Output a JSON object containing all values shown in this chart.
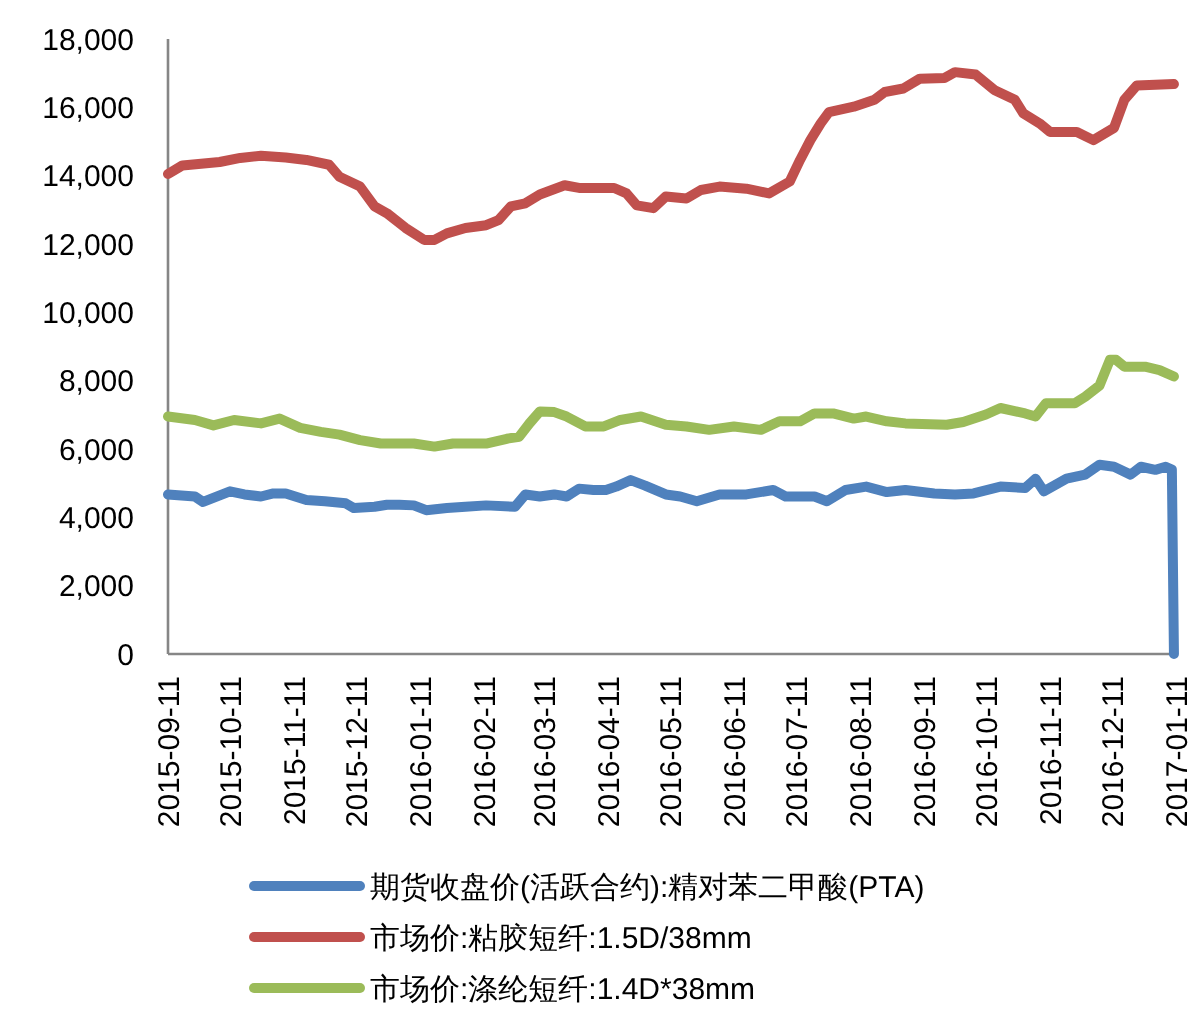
{
  "chart_data": {
    "type": "line",
    "xlim": [
      "2015-09-11",
      "2017-01-11"
    ],
    "xticks": [
      "2015-09-11",
      "2015-10-11",
      "2015-11-11",
      "2015-12-11",
      "2016-01-11",
      "2016-02-11",
      "2016-03-11",
      "2016-04-11",
      "2016-05-11",
      "2016-06-11",
      "2016-07-11",
      "2016-08-11",
      "2016-09-11",
      "2016-10-11",
      "2016-11-11",
      "2016-12-11",
      "2017-01-11"
    ],
    "ylim": [
      0,
      18000
    ],
    "yticks": [
      0,
      {
        "value": 2000,
        "label": "2,000"
      },
      {
        "value": 4000,
        "label": "4,000"
      },
      {
        "value": 6000,
        "label": "6,000"
      },
      {
        "value": 8000,
        "label": "8,000"
      },
      {
        "value": 10000,
        "label": "10,000"
      },
      {
        "value": 12000,
        "label": "12,000"
      },
      {
        "value": 14000,
        "label": "14,000"
      },
      {
        "value": 16000,
        "label": "16,000"
      },
      {
        "value": 18000,
        "label": "18,000"
      }
    ],
    "legend": "bottom",
    "line_style": "solid",
    "series": [
      {
        "name": "期货收盘价(活跃合约):精对苯二甲酸(PTA)",
        "color": "#4f81bd",
        "x": [
          "2015-09-11",
          "2015-09-24",
          "2015-09-28",
          "2015-10-11",
          "2015-10-18",
          "2015-10-26",
          "2015-11-01",
          "2015-11-07",
          "2015-11-17",
          "2015-11-26",
          "2015-12-06",
          "2015-12-10",
          "2015-12-20",
          "2015-12-26",
          "2016-01-01",
          "2016-01-08",
          "2016-01-14",
          "2016-01-24",
          "2016-02-02",
          "2016-02-12",
          "2016-02-26",
          "2016-03-02",
          "2016-03-09",
          "2016-03-16",
          "2016-03-22",
          "2016-03-28",
          "2016-04-04",
          "2016-04-10",
          "2016-04-15",
          "2016-04-22",
          "2016-04-29",
          "2016-05-09",
          "2016-05-16",
          "2016-05-24",
          "2016-06-04",
          "2016-06-17",
          "2016-06-30",
          "2016-07-06",
          "2016-07-20",
          "2016-07-26",
          "2016-08-04",
          "2016-08-14",
          "2016-08-24",
          "2016-09-02",
          "2016-09-16",
          "2016-09-26",
          "2016-10-05",
          "2016-10-18",
          "2016-10-30",
          "2016-11-04",
          "2016-11-08",
          "2016-11-19",
          "2016-11-28",
          "2016-12-05",
          "2016-12-12",
          "2016-12-20",
          "2016-12-25",
          "2017-01-01",
          "2017-01-06",
          "2017-01-09",
          "2017-01-10"
        ],
        "values": [
          4670,
          4610,
          4450,
          4760,
          4670,
          4610,
          4700,
          4700,
          4510,
          4470,
          4410,
          4270,
          4310,
          4370,
          4370,
          4350,
          4210,
          4270,
          4310,
          4350,
          4310,
          4670,
          4610,
          4670,
          4610,
          4840,
          4800,
          4800,
          4900,
          5090,
          4930,
          4670,
          4610,
          4470,
          4670,
          4670,
          4800,
          4610,
          4610,
          4470,
          4800,
          4900,
          4740,
          4800,
          4700,
          4670,
          4700,
          4900,
          4860,
          5130,
          4760,
          5130,
          5250,
          5540,
          5480,
          5250,
          5480,
          5390,
          5480,
          5400,
          0
        ]
      },
      {
        "name": "市场价:粘胶短纤:1.5D/38mm",
        "color": "#c0504d",
        "x": [
          "2015-09-11",
          "2015-09-18",
          "2015-10-06",
          "2015-10-16",
          "2015-10-26",
          "2015-11-07",
          "2015-11-17",
          "2015-11-28",
          "2015-12-03",
          "2015-12-13",
          "2015-12-20",
          "2015-12-26",
          "2016-01-04",
          "2016-01-13",
          "2016-01-18",
          "2016-01-24",
          "2016-02-02",
          "2016-02-12",
          "2016-02-18",
          "2016-02-24",
          "2016-03-02",
          "2016-03-09",
          "2016-03-21",
          "2016-03-28",
          "2016-04-14",
          "2016-04-20",
          "2016-04-25",
          "2016-05-03",
          "2016-05-09",
          "2016-05-19",
          "2016-05-26",
          "2016-06-04",
          "2016-06-17",
          "2016-06-28",
          "2016-07-08",
          "2016-07-13",
          "2016-07-18",
          "2016-07-23",
          "2016-07-27",
          "2016-08-08",
          "2016-08-18",
          "2016-08-23",
          "2016-09-01",
          "2016-09-09",
          "2016-09-21",
          "2016-09-26",
          "2016-10-06",
          "2016-10-15",
          "2016-10-25",
          "2016-10-29",
          "2016-11-06",
          "2016-11-11",
          "2016-11-24",
          "2016-12-02",
          "2016-12-12",
          "2016-12-17",
          "2016-12-23",
          "2017-01-10"
        ],
        "values": [
          14050,
          14300,
          14400,
          14520,
          14580,
          14530,
          14460,
          14320,
          13970,
          13680,
          13100,
          12900,
          12470,
          12120,
          12120,
          12310,
          12470,
          12550,
          12700,
          13100,
          13190,
          13450,
          13720,
          13640,
          13640,
          13480,
          13130,
          13050,
          13390,
          13330,
          13580,
          13680,
          13620,
          13480,
          13830,
          14460,
          15040,
          15530,
          15860,
          16020,
          16220,
          16450,
          16550,
          16840,
          16860,
          17030,
          16960,
          16510,
          16220,
          15830,
          15530,
          15280,
          15280,
          15040,
          15400,
          16220,
          16640,
          16680
        ]
      },
      {
        "name": "市场价:涤纶短纤:1.4D*38mm",
        "color": "#9bbb59",
        "x": [
          "2015-09-11",
          "2015-09-24",
          "2015-10-03",
          "2015-10-13",
          "2015-10-26",
          "2015-11-04",
          "2015-11-14",
          "2015-11-24",
          "2015-12-03",
          "2015-12-13",
          "2015-12-23",
          "2016-01-08",
          "2016-01-18",
          "2016-01-27",
          "2016-02-12",
          "2016-02-22",
          "2016-02-28",
          "2016-03-04",
          "2016-03-09",
          "2016-03-16",
          "2016-03-22",
          "2016-03-31",
          "2016-04-09",
          "2016-04-17",
          "2016-04-27",
          "2016-05-09",
          "2016-05-19",
          "2016-05-30",
          "2016-06-11",
          "2016-06-24",
          "2016-07-03",
          "2016-07-13",
          "2016-07-20",
          "2016-07-29",
          "2016-08-08",
          "2016-08-14",
          "2016-08-24",
          "2016-09-02",
          "2016-09-22",
          "2016-09-30",
          "2016-10-11",
          "2016-10-18",
          "2016-10-30",
          "2016-11-04",
          "2016-11-09",
          "2016-11-23",
          "2016-11-28",
          "2016-12-05",
          "2016-12-10",
          "2016-12-13",
          "2016-12-17",
          "2016-12-27",
          "2017-01-03",
          "2017-01-10"
        ],
        "values": [
          6950,
          6850,
          6690,
          6850,
          6750,
          6890,
          6620,
          6500,
          6420,
          6260,
          6160,
          6160,
          6070,
          6160,
          6160,
          6300,
          6360,
          6750,
          7100,
          7080,
          6950,
          6660,
          6660,
          6850,
          6950,
          6710,
          6660,
          6560,
          6660,
          6560,
          6810,
          6810,
          7040,
          7040,
          6890,
          6950,
          6810,
          6750,
          6710,
          6790,
          7010,
          7200,
          7040,
          6950,
          7340,
          7340,
          7530,
          7860,
          8610,
          8610,
          8410,
          8410,
          8310,
          8120
        ]
      }
    ]
  }
}
